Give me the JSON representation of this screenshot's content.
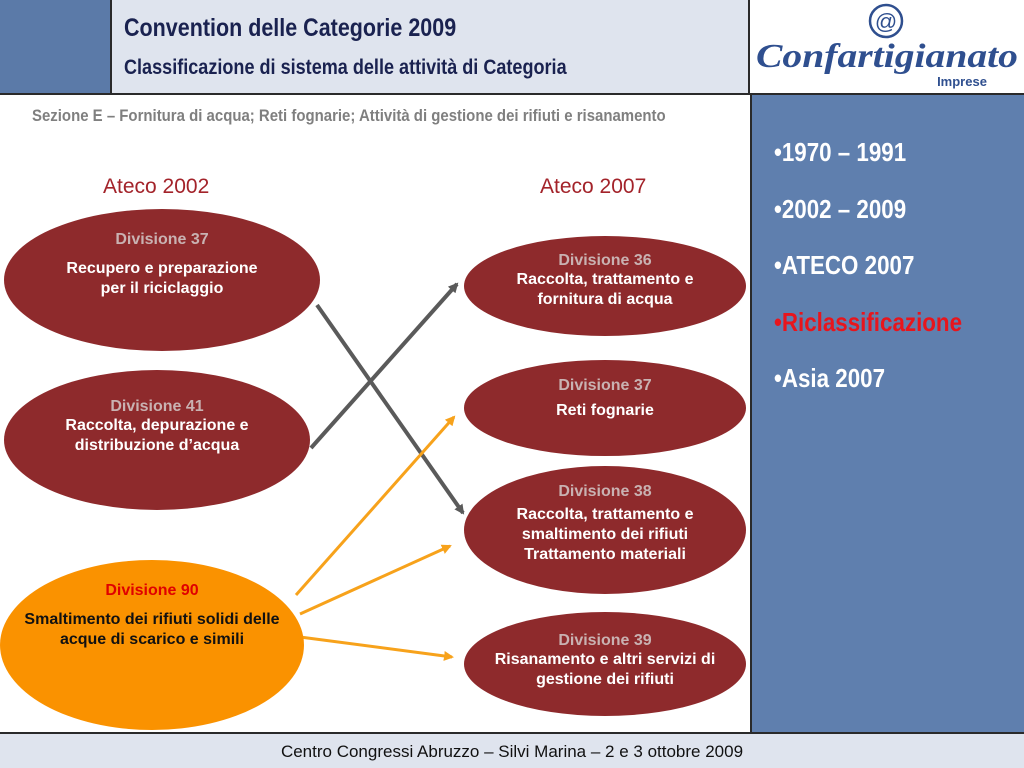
{
  "header": {
    "title": "Convention delle Categorie 2009",
    "subtitle": "Classificazione di sistema delle attività di Categoria"
  },
  "logo": {
    "at_symbol": "@",
    "brand": "Confartigianato",
    "sub": "Imprese"
  },
  "section_title": "Sezione E – Fornitura di acqua; Reti fognarie; Attività di gestione dei rifiuti e risanamento",
  "columns": {
    "left": "Ateco 2002",
    "right": "Ateco 2007"
  },
  "left_divisions": [
    {
      "division": "Divisione 37",
      "text": "Recupero e preparazione per il riciclaggio"
    },
    {
      "division": "Divisione 41",
      "text": "Raccolta, depurazione e distribuzione d’acqua"
    },
    {
      "division": "Divisione 90",
      "text": "Smaltimento dei rifiuti solidi delle acque di scarico e simili"
    }
  ],
  "right_divisions": [
    {
      "division": "Divisione 36",
      "text": "Raccolta, trattamento e fornitura di acqua"
    },
    {
      "division": "Divisione 37",
      "text": "Reti fognarie"
    },
    {
      "division": "Divisione 38",
      "text": "Raccolta, trattamento e smaltimento dei rifiuti Trattamento materiali"
    },
    {
      "division": "Divisione 39",
      "text": "Risanamento e altri servizi di gestione dei rifiuti"
    }
  ],
  "sidebar": {
    "items": [
      {
        "label": "•1970 – 1991",
        "highlight": false
      },
      {
        "label": "•2002 – 2009",
        "highlight": false
      },
      {
        "label": "•ATECO 2007",
        "highlight": false
      },
      {
        "label": "•Riclassificazione",
        "highlight": true
      },
      {
        "label": "•Asia 2007",
        "highlight": false
      }
    ]
  },
  "footer": {
    "text": "Centro Congressi Abruzzo – Silvi Marina – 2 e 3 ottobre 2009"
  },
  "colors": {
    "dark_red": "#8e2a2c",
    "orange": "#fa9200",
    "panel_blue": "#5f7fae",
    "highlight_red": "#e8151c",
    "gray_arrow": "#5a5a5a",
    "orange_arrow": "#f7a21b"
  }
}
